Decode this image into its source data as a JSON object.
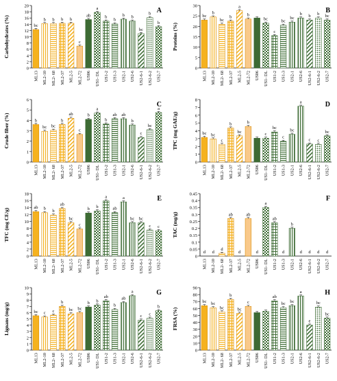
{
  "chart_data": [
    {
      "type": "bar",
      "panel_letter": "A",
      "ylabel": "Carbohydrates (%)",
      "ylim": [
        0,
        20
      ],
      "yticks": [
        0,
        2,
        4,
        6,
        8,
        10,
        12,
        14,
        16,
        18,
        20
      ],
      "categories": [
        "ML13",
        "ML2-10",
        "ML2- 68",
        "ML2-37",
        "ML2-5",
        "ML2-72",
        "US06",
        "US1- DL",
        "US1-2",
        "US1-3",
        "US2-1",
        "US2-6",
        "US2-6-1",
        "US2-6-2",
        "US2-7"
      ],
      "values": [
        12.3,
        14.2,
        14.2,
        14.3,
        14.3,
        7.0,
        15.5,
        17.8,
        15.0,
        14.1,
        15.6,
        15.0,
        11.0,
        16.1,
        13.2
      ],
      "letters": [
        "bc",
        "b",
        "b",
        "b",
        "b",
        "c",
        "ab",
        "a",
        "b",
        "b",
        "b",
        "b",
        "bc",
        "b",
        "b"
      ]
    },
    {
      "type": "bar",
      "panel_letter": "B",
      "ylabel": "Proteins (%)",
      "ylim": [
        0,
        30
      ],
      "yticks": [
        0,
        5,
        10,
        15,
        20,
        25,
        30
      ],
      "categories": [
        "ML13",
        "ML2-10",
        "ML2- 68",
        "ML2-37",
        "ML2-5",
        "ML2-72",
        "US06",
        "US1- DL",
        "US1-2",
        "US1-3",
        "US2-1",
        "US2-6",
        "US2-6-1",
        "US2-6-2",
        "US2-7"
      ],
      "values": [
        23.0,
        24.5,
        21.0,
        22.5,
        27.5,
        23.5,
        24.0,
        21.5,
        15.5,
        20.5,
        22.0,
        24.0,
        23.0,
        24.0,
        23.0
      ],
      "letters": [
        "bc",
        "b",
        "bc",
        "b",
        "a",
        "b",
        "",
        "bc",
        "c",
        "bc",
        "bc",
        "b",
        "b",
        "b",
        "bc"
      ]
    },
    {
      "type": "bar",
      "panel_letter": "C",
      "ylabel": "Crude fiber (%)",
      "ylim": [
        0,
        6
      ],
      "yticks": [
        0,
        1,
        2,
        3,
        4,
        5,
        6
      ],
      "categories": [
        "ML13",
        "ML2-10",
        "ML2- 68",
        "ML2-37",
        "ML2-5",
        "ML2-72",
        "US06",
        "US1- DL",
        "US1-2",
        "US1-3",
        "US2-1",
        "US2-6",
        "US2-6-1",
        "US2-6-2",
        "US2-7"
      ],
      "values": [
        3.6,
        2.95,
        3.05,
        3.6,
        4.2,
        2.65,
        4.1,
        4.7,
        3.65,
        4.15,
        4.15,
        3.55,
        2.35,
        3.1,
        4.75
      ],
      "letters": [
        "b",
        "bc",
        "bc",
        "b",
        "ab",
        "c",
        "b",
        "a",
        "b",
        "ab",
        "ab",
        "b",
        "c",
        "bc",
        "a"
      ]
    },
    {
      "type": "bar",
      "panel_letter": "D",
      "ylabel": "TPC (mg GAE/g)",
      "ylim": [
        0,
        8
      ],
      "yticks": [
        0,
        1,
        2,
        3,
        4,
        5,
        6,
        7,
        8
      ],
      "categories": [
        "ML13",
        "ML2-10",
        "ML2- 68",
        "ML2-37",
        "ML2-5",
        "ML2-72",
        "US06",
        "US1- DL",
        "US1-2",
        "US1-3",
        "US2-1",
        "US2-6",
        "US2-6-1",
        "US2-6-2",
        "US2-7"
      ],
      "values": [
        3.15,
        2.95,
        2.25,
        4.35,
        3.35,
        4.55,
        3.05,
        3.05,
        3.85,
        2.65,
        3.55,
        7.15,
        2.3,
        2.25,
        3.35
      ],
      "letters": [
        "bc",
        "bc",
        "c",
        "b",
        "bc",
        "b",
        "",
        "c",
        "bc",
        "c",
        "bc",
        "a",
        "c",
        "c",
        "bc"
      ]
    },
    {
      "type": "bar",
      "panel_letter": "E",
      "ylabel": "TFC (mg CE/g)",
      "ylim": [
        0,
        18
      ],
      "yticks": [
        0,
        2,
        4,
        6,
        8,
        10,
        12,
        14,
        16,
        18
      ],
      "categories": [
        "ML13",
        "ML2-10",
        "ML2- 68",
        "ML2-37",
        "ML2-5",
        "ML2-72",
        "US06",
        "US1- DL",
        "US1-2",
        "US1-3",
        "US2-1",
        "US2-6",
        "US2-6-1",
        "US2-6-2",
        "US2-7"
      ],
      "values": [
        12.8,
        12.5,
        11.8,
        13.7,
        9.6,
        7.8,
        12.4,
        13.0,
        15.9,
        12.5,
        15.6,
        9.6,
        9.6,
        7.5,
        7.3
      ],
      "letters": [
        "ab",
        "b",
        "b",
        "ab",
        "bc",
        "c",
        "b",
        "b",
        "a",
        "ab",
        "a",
        "bc",
        "bc",
        "c",
        "c"
      ]
    },
    {
      "type": "bar",
      "panel_letter": "F",
      "ylabel": "TAC (mg/g)",
      "ylim": [
        0,
        0.45
      ],
      "yticks": [
        0,
        0.05,
        0.1,
        0.15,
        0.2,
        0.25,
        0.3,
        0.35,
        0.4,
        0.45
      ],
      "categories": [
        "ML13",
        "ML2-10",
        "ML2- 68",
        "ML2-37",
        "ML2-5",
        "ML2-72",
        "US06",
        "US1- DL",
        "US1-2",
        "US1-3",
        "US2-1",
        "US2-6",
        "US2-6-1",
        "US2-6-2",
        "US2-7"
      ],
      "values": [
        0,
        0,
        0.02,
        0.27,
        0,
        0.27,
        0,
        0.35,
        0.24,
        0,
        0.2,
        0,
        0,
        0,
        0
      ],
      "letters": [
        "d",
        "d",
        "d",
        "ab",
        "d",
        "ab",
        "d",
        "a",
        "ab",
        "d",
        "b",
        "d",
        "d",
        "d",
        "d"
      ]
    },
    {
      "type": "bar",
      "panel_letter": "G",
      "ylabel": "Lignans (mg/g)",
      "ylim": [
        0,
        10
      ],
      "yticks": [
        0,
        1,
        2,
        3,
        4,
        5,
        6,
        7,
        8,
        9,
        10
      ],
      "categories": [
        "ML13",
        "ML2-10",
        "ML2- 68",
        "ML2-37",
        "ML2-5",
        "ML2-72",
        "US06",
        "US1- DL",
        "US1-2",
        "US1-3",
        "US2-1",
        "US2-6",
        "US2-6-1",
        "US2-6-2",
        "US2-7"
      ],
      "values": [
        5.5,
        5.3,
        5.6,
        7.0,
        5.8,
        6.0,
        6.9,
        7.2,
        7.9,
        6.5,
        7.6,
        8.7,
        4.8,
        5.1,
        6.3
      ],
      "letters": [
        "bc",
        "c",
        "c",
        "b",
        "bc",
        "bc",
        "b",
        "b",
        "ab",
        "b",
        "ab",
        "a",
        "c",
        "c",
        "b"
      ]
    },
    {
      "type": "bar",
      "panel_letter": "H",
      "ylabel": "FRSA (%)",
      "ylim": [
        0,
        90
      ],
      "yticks": [
        0,
        10,
        20,
        30,
        40,
        50,
        60,
        70,
        80,
        90
      ],
      "categories": [
        "ML13",
        "ML2-10",
        "ML2- 68",
        "ML2-37",
        "ML2-5",
        "ML2-72",
        "US06",
        "US1- DL",
        "US1-2",
        "US1-3",
        "US2-1",
        "US2-6",
        "US2-6-1",
        "US2-6-2",
        "US2-7"
      ],
      "values": [
        64,
        61,
        55,
        73,
        53,
        63,
        54,
        56,
        71,
        61,
        64,
        78,
        36,
        62,
        46
      ],
      "letters": [
        "bc",
        "bc",
        "bc",
        "b",
        "bc",
        "c",
        "",
        "",
        "ab",
        "bc",
        "bc",
        "a",
        "e",
        "bc",
        "bc"
      ]
    }
  ],
  "style": {
    "colors": [
      "#f5b21f",
      "#ffffff",
      "#ffffff",
      "#fbd9a0",
      "#ffffff",
      "#f9c98a",
      "#3d6b34",
      "#ffffff",
      "#ffffff",
      "#ffffff",
      "#ffffff",
      "#ffffff",
      "#ffffff",
      "#ffffff",
      "#3d6b34"
    ],
    "patterns": [
      "solid",
      "vlines-orange",
      "hlines-orange",
      "grid-orange",
      "diag-orange",
      "solid",
      "solid",
      "check-green",
      "hatch-green",
      "hlines-green",
      "vlines-green",
      "vlines-green",
      "diag-green",
      "dots-green",
      "check-green"
    ]
  }
}
